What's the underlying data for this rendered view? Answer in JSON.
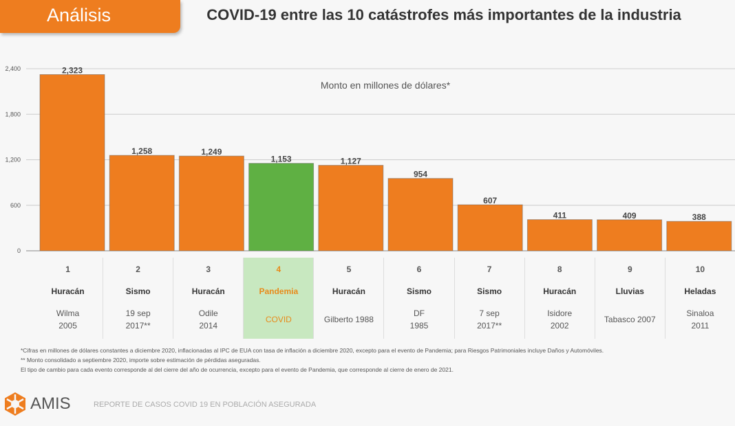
{
  "header": {
    "section_tab": "Análisis",
    "title": "COVID-19 entre las 10 catástrofes más importantes de la industria"
  },
  "chart_data": {
    "type": "bar",
    "title": "COVID-19 entre las 10 catástrofes más importantes de la industria",
    "subtitle": "Monto en millones de dólares*",
    "categories": [
      "1",
      "2",
      "3",
      "4",
      "5",
      "6",
      "7",
      "8",
      "9",
      "10"
    ],
    "values": [
      2323,
      1258,
      1249,
      1153,
      1127,
      954,
      607,
      411,
      409,
      388
    ],
    "value_labels": [
      "2,323",
      "1,258",
      "1,249",
      "1,153",
      "1,127",
      "954",
      "607",
      "411",
      "409",
      "388"
    ],
    "yticks": [
      "0",
      "600",
      "1,200",
      "1,800",
      "2,400"
    ],
    "ytick_values": [
      0,
      600,
      1200,
      1800,
      2400
    ],
    "ylim": [
      0,
      2400
    ],
    "grid": true,
    "highlight_index": 3,
    "colors": {
      "bar": "#ee7d1f",
      "highlight": "#5fb043"
    }
  },
  "table": [
    {
      "rank": "1",
      "type": "Huracán",
      "name": "Wilma\n2005"
    },
    {
      "rank": "2",
      "type": "Sismo",
      "name": "19 sep\n2017**"
    },
    {
      "rank": "3",
      "type": "Huracán",
      "name": "Odile\n2014"
    },
    {
      "rank": "4",
      "type": "Pandemia",
      "name": "COVID"
    },
    {
      "rank": "5",
      "type": "Huracán",
      "name": "Gilberto 1988"
    },
    {
      "rank": "6",
      "type": "Sismo",
      "name": "DF\n1985"
    },
    {
      "rank": "7",
      "type": "Sismo",
      "name": "7 sep\n2017**"
    },
    {
      "rank": "8",
      "type": "Huracán",
      "name": "Isidore\n2002"
    },
    {
      "rank": "9",
      "type": "Lluvias",
      "name": "Tabasco 2007"
    },
    {
      "rank": "10",
      "type": "Heladas",
      "name": "Sinaloa\n2011"
    }
  ],
  "notes": [
    "*Cifras en millones de dólares constantes a diciembre 2020, inflacionadas al IPC de EUA con tasa de inflación a diciembre 2020, excepto para el evento de Pandemia; para Riesgos Patrimoniales incluye Daños y Automóviles.",
    "** Monto consolidado a septiembre 2020, importe sobre estimación de pérdidas aseguradas.",
    "El tipo de cambio para cada evento corresponde al del cierre del año de ocurrencia, excepto para el evento de Pandemia, que corresponde al cierre de enero de 2021."
  ],
  "footer": {
    "logo": "AMIS",
    "report": "REPORTE DE CASOS COVID 19 EN POBLACIÓN ASEGURADA"
  }
}
